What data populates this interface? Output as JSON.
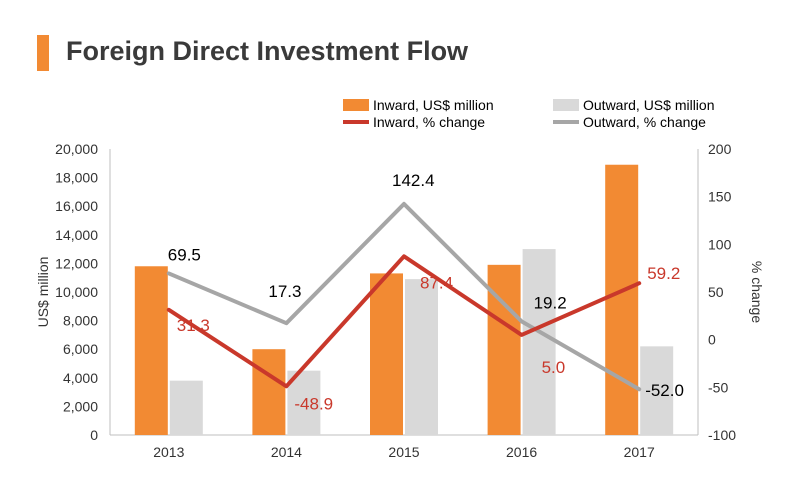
{
  "header": {
    "title": "Foreign Direct Investment Flow"
  },
  "colors": {
    "accent": "#f28a33",
    "inward": "#f28a33",
    "outward": "#d9d9d9",
    "inward_line": "#c9382b",
    "outward_line": "#a6a6a6"
  },
  "chart_data": {
    "type": "bar",
    "categories": [
      "2013",
      "2014",
      "2015",
      "2016",
      "2017"
    ],
    "series": [
      {
        "name": "Inward, US$ million",
        "type": "bar",
        "axis": "left",
        "values": [
          11800,
          6000,
          11300,
          11900,
          18900
        ]
      },
      {
        "name": "Outward, US$ million",
        "type": "bar",
        "axis": "left",
        "values": [
          3800,
          4500,
          10900,
          13000,
          6200
        ]
      },
      {
        "name": "Inward, % change",
        "type": "line",
        "axis": "right",
        "values": [
          31.3,
          -48.9,
          87.4,
          5.0,
          59.2
        ],
        "labels": [
          "31.3",
          "-48.9",
          "87.4",
          "5.0",
          "59.2"
        ]
      },
      {
        "name": "Outward, % change",
        "type": "line",
        "axis": "right",
        "values": [
          69.5,
          17.3,
          142.4,
          19.2,
          -52.0
        ],
        "labels": [
          "69.5",
          "17.3",
          "142.4",
          "19.2",
          "-52.0"
        ]
      }
    ],
    "ylabel": "US$ million",
    "y2label": "% change",
    "ylim": [
      0,
      20000
    ],
    "y2lim": [
      -100,
      200
    ],
    "yticks": [
      "0",
      "2,000",
      "4,000",
      "6,000",
      "8,000",
      "10,000",
      "12,000",
      "14,000",
      "16,000",
      "18,000",
      "20,000"
    ],
    "y2ticks": [
      "-100",
      "-50",
      "0",
      "50",
      "100",
      "150",
      "200"
    ],
    "legend_position": "top"
  }
}
